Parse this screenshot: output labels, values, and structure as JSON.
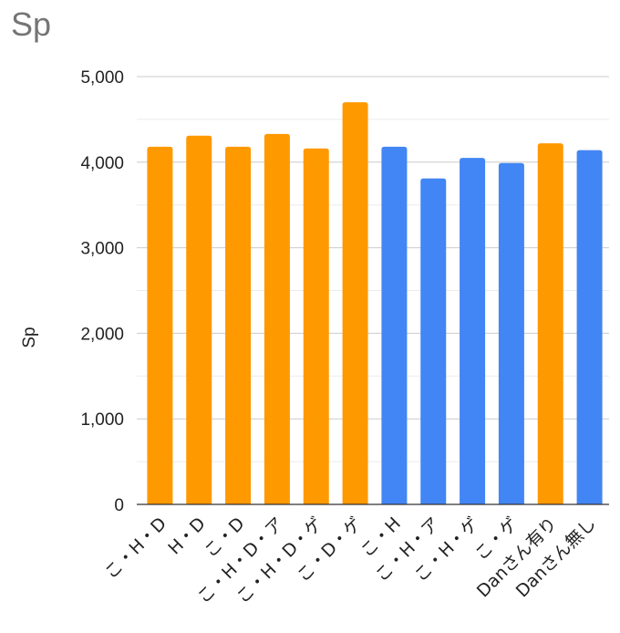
{
  "chart_data": {
    "type": "bar",
    "title": "Sp",
    "xlabel": "",
    "ylabel": "Sp",
    "ylim": [
      0,
      5000
    ],
    "yticks": [
      "0",
      "1,000",
      "2,000",
      "3,000",
      "4,000",
      "5,000"
    ],
    "grid": true,
    "categories": [
      "こ・H・D",
      "H・D",
      "こ・D",
      "こ・H・D・ア",
      "こ・H・D・ゲ",
      "こ・D・ゲ",
      "こ・H",
      "こ・H・ア",
      "こ・H・ゲ",
      "こ・ゲ",
      "Danさん有り",
      "Danさん無し"
    ],
    "values": [
      4180,
      4310,
      4180,
      4330,
      4160,
      4700,
      4180,
      3810,
      4050,
      3990,
      4220,
      4140
    ],
    "bar_colors": [
      "#ff9900",
      "#ff9900",
      "#ff9900",
      "#ff9900",
      "#ff9900",
      "#ff9900",
      "#4285f4",
      "#4285f4",
      "#4285f4",
      "#4285f4",
      "#ff9900",
      "#4285f4"
    ]
  }
}
